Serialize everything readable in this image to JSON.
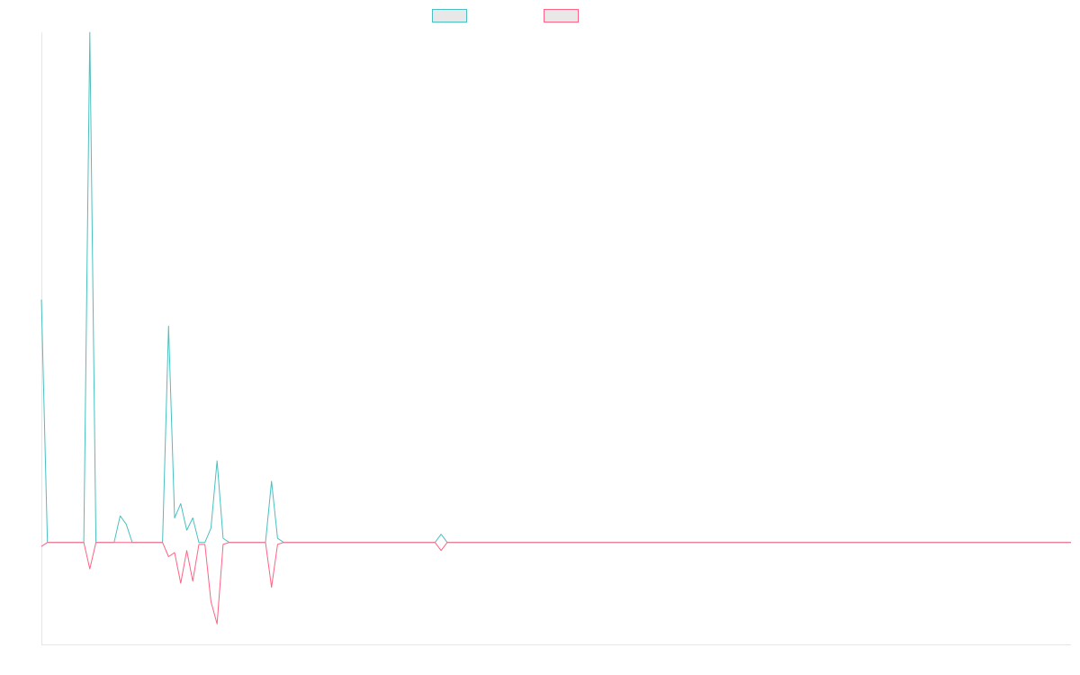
{
  "chart_data": {
    "type": "line",
    "title": "",
    "xlabel": "",
    "ylabel": "",
    "grid": false,
    "legend": "top-center",
    "xlim": [
      0,
      170
    ],
    "ylim": [
      -0.5,
      2.5
    ],
    "x": [
      0,
      1,
      2,
      3,
      4,
      5,
      6,
      7,
      8,
      9,
      10,
      11,
      12,
      13,
      14,
      15,
      16,
      17,
      18,
      19,
      20,
      21,
      22,
      23,
      24,
      25,
      26,
      27,
      28,
      29,
      30,
      31,
      32,
      33,
      34,
      35,
      36,
      37,
      38,
      39,
      40,
      41,
      42,
      43,
      44,
      45,
      46,
      47,
      48,
      49,
      50,
      51,
      52,
      53,
      54,
      55,
      56,
      57,
      58,
      59,
      60,
      61,
      62,
      63,
      64,
      65,
      66,
      67,
      68,
      69,
      70,
      71,
      72,
      73,
      74,
      75,
      76,
      77,
      78,
      79,
      80,
      81,
      82,
      83,
      84,
      85,
      86,
      87,
      88,
      89,
      90,
      91,
      92,
      93,
      94,
      95,
      96,
      97,
      98,
      99,
      100,
      101,
      102,
      103,
      104,
      105,
      106,
      107,
      108,
      109,
      110,
      111,
      112,
      113,
      114,
      115,
      116,
      117,
      118,
      119,
      120,
      121,
      122,
      123,
      124,
      125,
      126,
      127,
      128,
      129,
      130,
      131,
      132,
      133,
      134,
      135,
      136,
      137,
      138,
      139,
      140,
      141,
      142,
      143,
      144,
      145,
      146,
      147,
      148,
      149,
      150,
      151,
      152,
      153,
      154,
      155,
      156,
      157,
      158,
      159,
      160,
      161,
      162,
      163,
      164,
      165,
      166,
      167,
      168,
      169,
      170
    ],
    "series": [
      {
        "color": "#4bc0c0",
        "values": [
          1.19,
          0,
          0,
          0,
          0,
          0,
          0,
          0,
          2.5,
          0,
          0,
          0,
          0,
          0.13,
          0.09,
          0,
          0,
          0,
          0,
          0,
          0,
          1.06,
          0.12,
          0.19,
          0.06,
          0.12,
          0,
          0,
          0.07,
          0.4,
          0.02,
          0,
          0,
          0,
          0,
          0,
          0,
          0,
          0.3,
          0.02,
          0,
          0,
          0,
          0,
          0,
          0,
          0,
          0,
          0,
          0,
          0,
          0,
          0,
          0,
          0,
          0,
          0,
          0,
          0,
          0,
          0,
          0,
          0,
          0,
          0,
          0,
          0.04,
          0,
          0,
          0,
          0,
          0,
          0,
          0,
          0,
          0,
          0,
          0,
          0,
          0,
          0,
          0,
          0,
          0,
          0,
          0,
          0,
          0,
          0,
          0,
          0,
          0,
          0,
          0,
          0,
          0,
          0,
          0,
          0,
          0,
          0,
          0,
          0,
          0,
          0,
          0,
          0,
          0,
          0,
          0,
          0,
          0,
          0,
          0,
          0,
          0,
          0,
          0,
          0,
          0,
          0,
          0,
          0,
          0,
          0,
          0,
          0,
          0,
          0,
          0,
          0,
          0,
          0,
          0,
          0,
          0,
          0,
          0,
          0,
          0,
          0,
          0,
          0,
          0,
          0,
          0,
          0,
          0,
          0,
          0,
          0,
          0,
          0,
          0,
          0,
          0,
          0,
          0,
          0,
          0,
          0,
          0,
          0,
          0,
          0,
          0,
          0,
          0,
          0,
          0,
          0
        ]
      },
      {
        "color": "#ff6384",
        "values": [
          -0.02,
          0,
          0,
          0,
          0,
          0,
          0,
          0,
          -0.13,
          0,
          0,
          0,
          0,
          0,
          0,
          0,
          0,
          0,
          0,
          0,
          0,
          -0.07,
          -0.05,
          -0.2,
          -0.04,
          -0.19,
          -0.01,
          -0.01,
          -0.29,
          -0.4,
          -0.01,
          0,
          0,
          0,
          0,
          0,
          0,
          0,
          -0.22,
          -0.01,
          0,
          0,
          0,
          0,
          0,
          0,
          0,
          0,
          0,
          0,
          0,
          0,
          0,
          0,
          0,
          0,
          0,
          0,
          0,
          0,
          0,
          0,
          0,
          0,
          0,
          0,
          -0.04,
          0,
          0,
          0,
          0,
          0,
          0,
          0,
          0,
          0,
          0,
          0,
          0,
          0,
          0,
          0,
          0,
          0,
          0,
          0,
          0,
          0,
          0,
          0,
          0,
          0,
          0,
          0,
          0,
          0,
          0,
          0,
          0,
          0,
          0,
          0,
          0,
          0,
          0,
          0,
          0,
          0,
          0,
          0,
          0,
          0,
          0,
          0,
          0,
          0,
          0,
          0,
          0,
          0,
          0,
          0,
          0,
          0,
          0,
          0,
          0,
          0,
          0,
          0,
          0,
          0,
          0,
          0,
          0,
          0,
          0,
          0,
          0,
          0,
          0,
          0,
          0,
          0,
          0,
          0,
          0,
          0,
          0,
          0,
          0,
          0,
          0,
          0,
          0,
          0,
          0,
          0,
          0,
          0,
          0,
          0,
          0,
          0,
          0,
          0,
          0,
          0,
          0,
          0,
          0
        ]
      }
    ]
  }
}
